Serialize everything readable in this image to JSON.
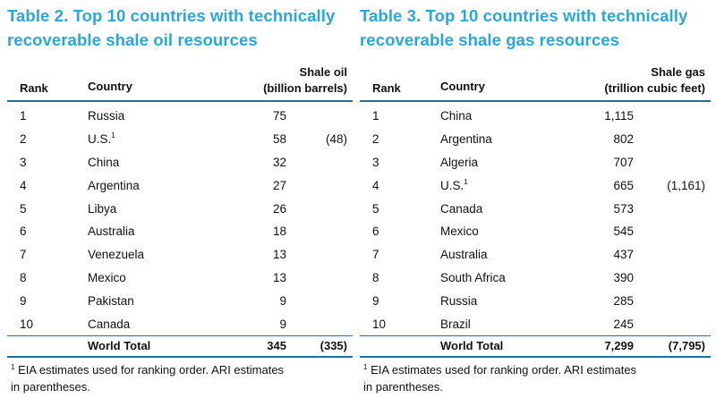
{
  "oil": {
    "title_line1": "Table 2. Top 10 countries with technically",
    "title_line2": "recoverable shale oil resources",
    "col_rank": "Rank",
    "col_country": "Country",
    "col_value_line1": "Shale oil",
    "col_value_line2": "(billion barrels)",
    "rows": [
      {
        "rank": "1",
        "country": "Russia",
        "footnote_mark": "",
        "value": "75",
        "alt": ""
      },
      {
        "rank": "2",
        "country": "U.S.",
        "footnote_mark": "1",
        "value": "58",
        "alt": "(48)"
      },
      {
        "rank": "3",
        "country": "China",
        "footnote_mark": "",
        "value": "32",
        "alt": ""
      },
      {
        "rank": "4",
        "country": "Argentina",
        "footnote_mark": "",
        "value": "27",
        "alt": ""
      },
      {
        "rank": "5",
        "country": "Libya",
        "footnote_mark": "",
        "value": "26",
        "alt": ""
      },
      {
        "rank": "6",
        "country": "Australia",
        "footnote_mark": "",
        "value": "18",
        "alt": ""
      },
      {
        "rank": "7",
        "country": "Venezuela",
        "footnote_mark": "",
        "value": "13",
        "alt": ""
      },
      {
        "rank": "8",
        "country": "Mexico",
        "footnote_mark": "",
        "value": "13",
        "alt": ""
      },
      {
        "rank": "9",
        "country": "Pakistan",
        "footnote_mark": "",
        "value": "9",
        "alt": ""
      },
      {
        "rank": "10",
        "country": "Canada",
        "footnote_mark": "",
        "value": "9",
        "alt": ""
      }
    ],
    "total_label": "World Total",
    "total_value": "345",
    "total_alt": "(335)",
    "footnote_mark": "1",
    "footnote_line1": "EIA estimates used for ranking order. ARI estimates",
    "footnote_line2": "in parentheses."
  },
  "gas": {
    "title_line1": "Table 3. Top 10 countries with technically",
    "title_line2": "recoverable shale gas resources",
    "col_rank": "Rank",
    "col_country": "Country",
    "col_value_line1": "Shale gas",
    "col_value_line2": "(trillion cubic feet)",
    "rows": [
      {
        "rank": "1",
        "country": "China",
        "footnote_mark": "",
        "value": "1,115",
        "alt": ""
      },
      {
        "rank": "2",
        "country": "Argentina",
        "footnote_mark": "",
        "value": "802",
        "alt": ""
      },
      {
        "rank": "3",
        "country": "Algeria",
        "footnote_mark": "",
        "value": "707",
        "alt": ""
      },
      {
        "rank": "4",
        "country": "U.S.",
        "footnote_mark": "1",
        "value": "665",
        "alt": "(1,161)"
      },
      {
        "rank": "5",
        "country": "Canada",
        "footnote_mark": "",
        "value": "573",
        "alt": ""
      },
      {
        "rank": "6",
        "country": "Mexico",
        "footnote_mark": "",
        "value": "545",
        "alt": ""
      },
      {
        "rank": "7",
        "country": "Australia",
        "footnote_mark": "",
        "value": "437",
        "alt": ""
      },
      {
        "rank": "8",
        "country": "South Africa",
        "footnote_mark": "",
        "value": "390",
        "alt": ""
      },
      {
        "rank": "9",
        "country": "Russia",
        "footnote_mark": "",
        "value": "285",
        "alt": ""
      },
      {
        "rank": "10",
        "country": "Brazil",
        "footnote_mark": "",
        "value": "245",
        "alt": ""
      }
    ],
    "total_label": "World Total",
    "total_value": "7,299",
    "total_alt": "(7,795)",
    "footnote_mark": "1",
    "footnote_line1": "EIA estimates used for ranking order. ARI estimates",
    "footnote_line2": "in parentheses."
  },
  "colors": {
    "title": "#2aa7d9",
    "rule": "#1f6fa0"
  }
}
